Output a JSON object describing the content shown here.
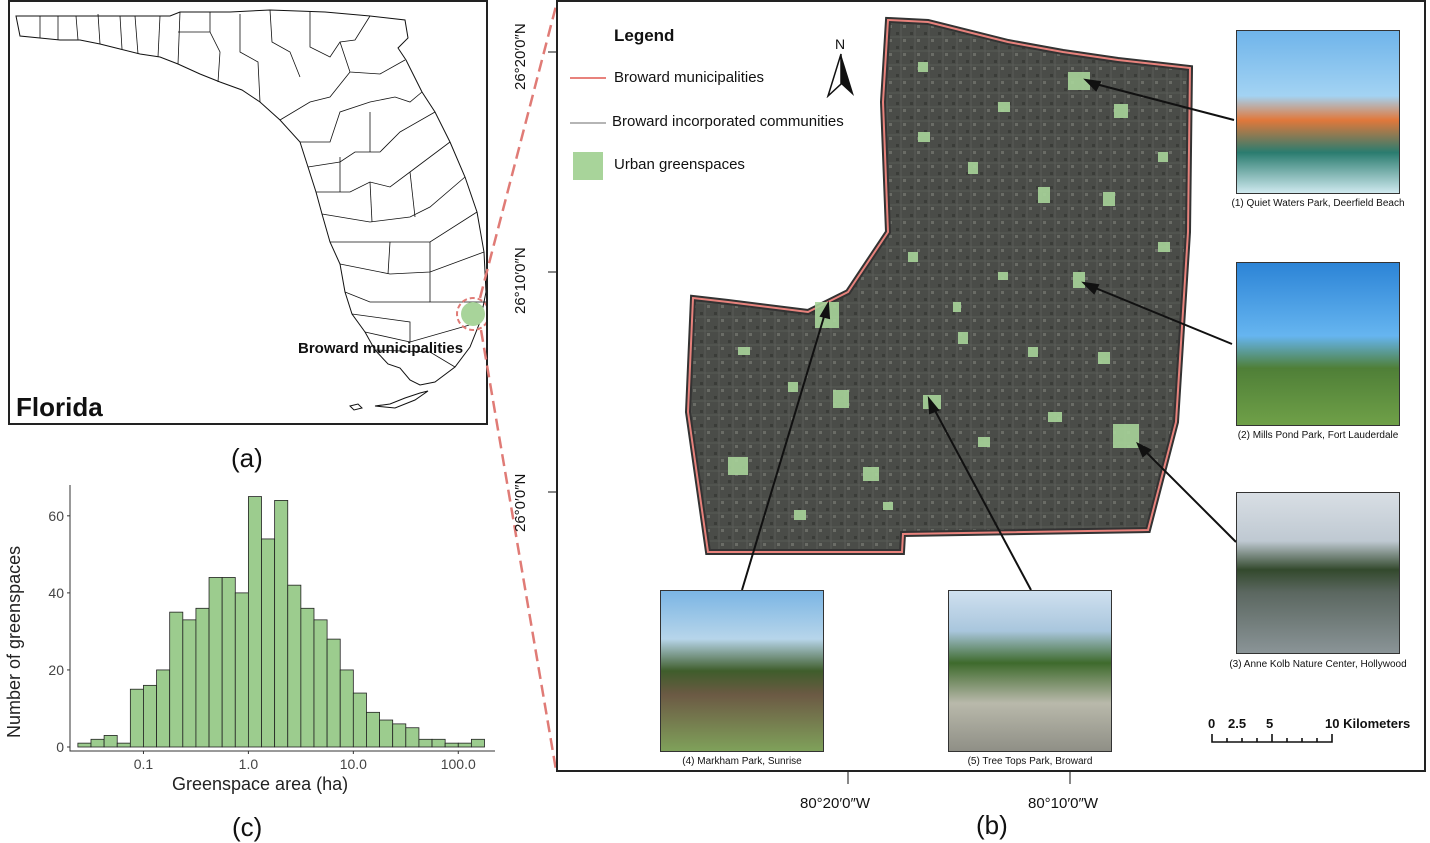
{
  "panel_a": {
    "caption": "(a)",
    "state_label": "Florida",
    "highlight_label": "Broward municipalities"
  },
  "panel_b": {
    "caption": "(b)",
    "legend": {
      "title": "Legend",
      "items": [
        {
          "label": "Broward municipalities",
          "color": "#e8827c"
        },
        {
          "label": "Broward incorporated communities",
          "color": "#b5b5b5"
        },
        {
          "label": "Urban greenspaces",
          "color": "#a8d49a"
        }
      ]
    },
    "north_label": "N",
    "lat_labels": [
      "26°20′0″N",
      "26°10′0″N",
      "26°0′0″N"
    ],
    "lon_labels": [
      "80°20′0″W",
      "80°10′0″W"
    ],
    "scale_bar": {
      "ticks": [
        "0",
        "2.5",
        "5",
        "10 Kilometers"
      ]
    },
    "photos": [
      {
        "caption": "(1) Quiet Waters Park, Deerfield Beach"
      },
      {
        "caption": "(2) Mills Pond Park, Fort Lauderdale"
      },
      {
        "caption": "(3) Anne Kolb Nature Center, Hollywood"
      },
      {
        "caption": "(4) Markham Park, Sunrise"
      },
      {
        "caption": "(5) Tree Tops Park, Broward"
      }
    ]
  },
  "panel_c": {
    "caption": "(c)",
    "chart_data": {
      "type": "bar",
      "xlabel": "Greenspace area (ha)",
      "ylabel": "Number of greenspaces",
      "x_scale": "log",
      "x_tick_labels": [
        "0.1",
        "1.0",
        "10.0",
        "100.0"
      ],
      "y_tick_labels": [
        "0",
        "20",
        "40",
        "60"
      ],
      "ylim": [
        0,
        68
      ],
      "bar_color": "#9ccc8e",
      "bins_log10_start": -1.625,
      "bin_width_log10": 0.125,
      "counts": [
        1,
        2,
        3,
        1,
        15,
        16,
        20,
        35,
        33,
        36,
        44,
        44,
        40,
        65,
        54,
        64,
        42,
        36,
        33,
        28,
        20,
        14,
        9,
        7,
        6,
        5,
        2,
        2,
        1,
        1,
        2
      ]
    }
  }
}
